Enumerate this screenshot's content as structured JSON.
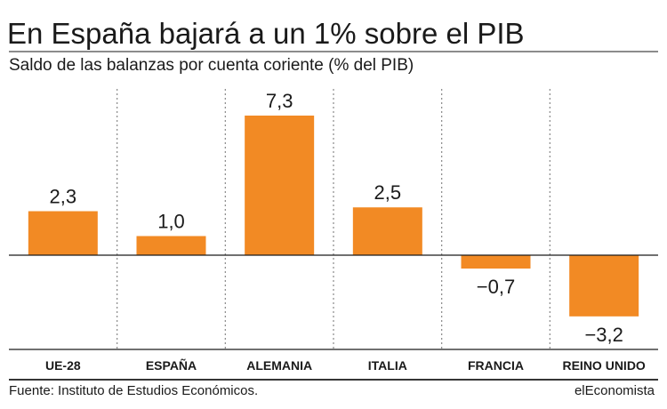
{
  "header": {
    "title": "En España bajará a un 1% sobre el PIB",
    "subtitle": "Saldo de las balanzas por cuenta coriente (% del PIB)"
  },
  "chart_data": {
    "type": "bar",
    "categories": [
      "UE-28",
      "ESPAÑA",
      "ALEMANIA",
      "ITALIA",
      "FRANCIA",
      "REINO UNIDO"
    ],
    "values": [
      2.3,
      1.0,
      7.3,
      2.5,
      -0.7,
      -3.2
    ],
    "value_labels": [
      "2,3",
      "1,0",
      "7,3",
      "2,5",
      "−0,7",
      "−3,2"
    ],
    "title": "",
    "xlabel": "",
    "ylabel": "",
    "ylim": [
      -4.7,
      8.5
    ],
    "grid": false,
    "legend": "none",
    "bar_color": "#f28a24",
    "axis_color": "#1a1a1a",
    "separator_color": "#888888"
  },
  "footer": {
    "source": "Fuente: Instituto de Estudios Económicos.",
    "brand": "elEconomista"
  }
}
